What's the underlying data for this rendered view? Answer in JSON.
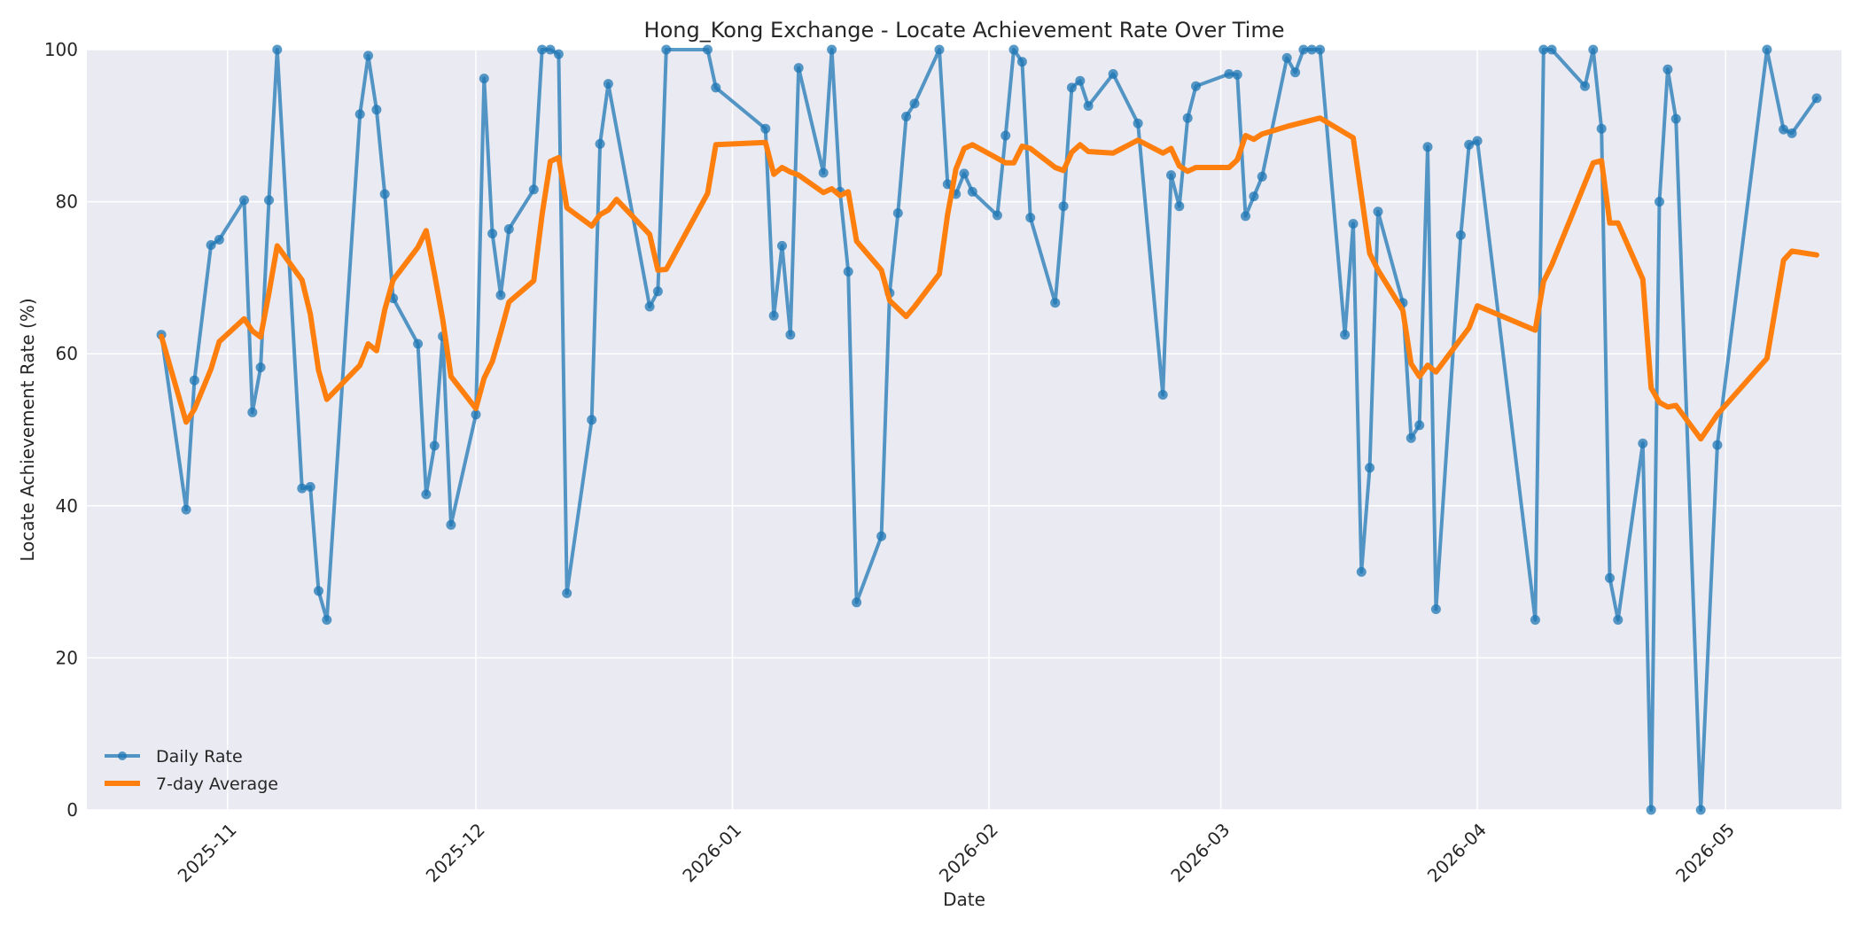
{
  "chart_data": {
    "type": "line",
    "title": "Hong_Kong Exchange - Locate Achievement Rate Over Time",
    "xlabel": "Date",
    "ylabel": "Locate Achievement Rate (%)",
    "xlim": [
      "2025-10-15",
      "2026-05-15"
    ],
    "ylim": [
      0,
      100
    ],
    "yticks": [
      0,
      20,
      40,
      60,
      80,
      100
    ],
    "xticks": [
      {
        "date": "2025-11-01",
        "label": "2025-11"
      },
      {
        "date": "2025-12-01",
        "label": "2025-12"
      },
      {
        "date": "2026-01-01",
        "label": "2026-01"
      },
      {
        "date": "2026-02-01",
        "label": "2026-02"
      },
      {
        "date": "2026-03-01",
        "label": "2026-03"
      },
      {
        "date": "2026-04-01",
        "label": "2026-04"
      },
      {
        "date": "2026-05-01",
        "label": "2026-05"
      }
    ],
    "grid": true,
    "legend_position": "lower-left",
    "series": [
      {
        "name": "Daily Rate",
        "color": "#1f77b4",
        "markers": true,
        "points": [
          [
            "2025-10-24",
            62.5
          ],
          [
            "2025-10-27",
            39.5
          ],
          [
            "2025-10-28",
            56.5
          ],
          [
            "2025-10-30",
            74.3
          ],
          [
            "2025-10-31",
            75
          ],
          [
            "2025-11-03",
            80.2
          ],
          [
            "2025-11-04",
            52.3
          ],
          [
            "2025-11-05",
            58.2
          ],
          [
            "2025-11-06",
            80.2
          ],
          [
            "2025-11-07",
            100
          ],
          [
            "2025-11-10",
            42.3
          ],
          [
            "2025-11-11",
            42.5
          ],
          [
            "2025-11-12",
            28.8
          ],
          [
            "2025-11-13",
            25
          ],
          [
            "2025-11-17",
            91.5
          ],
          [
            "2025-11-18",
            99.2
          ],
          [
            "2025-11-19",
            92.1
          ],
          [
            "2025-11-20",
            81
          ],
          [
            "2025-11-21",
            67.3
          ],
          [
            "2025-11-24",
            61.3
          ],
          [
            "2025-11-25",
            41.5
          ],
          [
            "2025-11-26",
            47.9
          ],
          [
            "2025-11-27",
            62.3
          ],
          [
            "2025-11-28",
            37.5
          ],
          [
            "2025-12-01",
            52
          ],
          [
            "2025-12-02",
            96.2
          ],
          [
            "2025-12-03",
            75.8
          ],
          [
            "2025-12-04",
            67.7
          ],
          [
            "2025-12-05",
            76.4
          ],
          [
            "2025-12-08",
            81.6
          ],
          [
            "2025-12-09",
            100
          ],
          [
            "2025-12-10",
            100
          ],
          [
            "2025-12-11",
            99.4
          ],
          [
            "2025-12-12",
            28.5
          ],
          [
            "2025-12-15",
            51.3
          ],
          [
            "2025-12-16",
            87.6
          ],
          [
            "2025-12-17",
            95.5
          ],
          [
            "2025-12-22",
            66.2
          ],
          [
            "2025-12-23",
            68.2
          ],
          [
            "2025-12-24",
            100
          ],
          [
            "2025-12-29",
            100
          ],
          [
            "2025-12-30",
            95
          ],
          [
            "2026-01-05",
            89.6
          ],
          [
            "2026-01-06",
            65
          ],
          [
            "2026-01-07",
            74.2
          ],
          [
            "2026-01-08",
            62.5
          ],
          [
            "2026-01-09",
            97.6
          ],
          [
            "2026-01-12",
            83.8
          ],
          [
            "2026-01-13",
            100
          ],
          [
            "2026-01-14",
            81.3
          ],
          [
            "2026-01-15",
            70.8
          ],
          [
            "2026-01-16",
            27.3
          ],
          [
            "2026-01-19",
            36
          ],
          [
            "2026-01-20",
            68
          ],
          [
            "2026-01-21",
            78.5
          ],
          [
            "2026-01-22",
            91.2
          ],
          [
            "2026-01-23",
            92.9
          ],
          [
            "2026-01-26",
            100
          ],
          [
            "2026-01-27",
            82.3
          ],
          [
            "2026-01-28",
            81
          ],
          [
            "2026-01-29",
            83.7
          ],
          [
            "2026-01-30",
            81.3
          ],
          [
            "2026-02-02",
            78.2
          ],
          [
            "2026-02-03",
            88.7
          ],
          [
            "2026-02-04",
            100
          ],
          [
            "2026-02-05",
            98.4
          ],
          [
            "2026-02-06",
            77.9
          ],
          [
            "2026-02-09",
            66.7
          ],
          [
            "2026-02-10",
            79.4
          ],
          [
            "2026-02-11",
            95
          ],
          [
            "2026-02-12",
            95.9
          ],
          [
            "2026-02-13",
            92.6
          ],
          [
            "2026-02-16",
            96.8
          ],
          [
            "2026-02-19",
            90.3
          ],
          [
            "2026-02-22",
            54.6
          ],
          [
            "2026-02-23",
            83.5
          ],
          [
            "2026-02-24",
            79.4
          ],
          [
            "2026-02-25",
            91
          ],
          [
            "2026-02-26",
            95.2
          ],
          [
            "2026-03-02",
            96.8
          ],
          [
            "2026-03-03",
            96.7
          ],
          [
            "2026-03-04",
            78.1
          ],
          [
            "2026-03-05",
            80.7
          ],
          [
            "2026-03-06",
            83.3
          ],
          [
            "2026-03-09",
            98.9
          ],
          [
            "2026-03-10",
            97
          ],
          [
            "2026-03-11",
            100
          ],
          [
            "2026-03-12",
            100
          ],
          [
            "2026-03-13",
            100
          ],
          [
            "2026-03-16",
            62.5
          ],
          [
            "2026-03-17",
            77.1
          ],
          [
            "2026-03-18",
            31.3
          ],
          [
            "2026-03-19",
            45
          ],
          [
            "2026-03-20",
            78.7
          ],
          [
            "2026-03-23",
            66.7
          ],
          [
            "2026-03-24",
            48.9
          ],
          [
            "2026-03-25",
            50.6
          ],
          [
            "2026-03-26",
            87.2
          ],
          [
            "2026-03-27",
            26.4
          ],
          [
            "2026-03-30",
            75.6
          ],
          [
            "2026-03-31",
            87.5
          ],
          [
            "2026-04-01",
            88
          ],
          [
            "2026-04-08",
            25
          ],
          [
            "2026-04-09",
            100
          ],
          [
            "2026-04-10",
            100
          ],
          [
            "2026-04-14",
            95.2
          ],
          [
            "2026-04-15",
            100
          ],
          [
            "2026-04-16",
            89.6
          ],
          [
            "2026-04-17",
            30.5
          ],
          [
            "2026-04-18",
            25
          ],
          [
            "2026-04-21",
            48.2
          ],
          [
            "2026-04-22",
            0
          ],
          [
            "2026-04-23",
            80
          ],
          [
            "2026-04-24",
            97.4
          ],
          [
            "2026-04-25",
            90.9
          ],
          [
            "2026-04-28",
            0
          ],
          [
            "2026-04-30",
            48
          ],
          [
            "2026-05-06",
            100
          ],
          [
            "2026-05-08",
            89.5
          ],
          [
            "2026-05-09",
            89
          ],
          [
            "2026-05-12",
            93.6
          ]
        ]
      },
      {
        "name": "7-day Average",
        "color": "#ff7f0e",
        "markers": false,
        "points": [
          [
            "2025-10-24",
            62.3
          ],
          [
            "2025-10-27",
            51
          ],
          [
            "2025-10-28",
            52.7
          ],
          [
            "2025-10-30",
            58
          ],
          [
            "2025-10-31",
            61.6
          ],
          [
            "2025-11-03",
            64.6
          ],
          [
            "2025-11-04",
            63
          ],
          [
            "2025-11-05",
            62.2
          ],
          [
            "2025-11-06",
            68
          ],
          [
            "2025-11-07",
            74.2
          ],
          [
            "2025-11-10",
            69.7
          ],
          [
            "2025-11-11",
            65.2
          ],
          [
            "2025-11-12",
            57.8
          ],
          [
            "2025-11-13",
            54
          ],
          [
            "2025-11-17",
            58.5
          ],
          [
            "2025-11-18",
            61.3
          ],
          [
            "2025-11-19",
            60.4
          ],
          [
            "2025-11-20",
            65.8
          ],
          [
            "2025-11-21",
            69.7
          ],
          [
            "2025-11-24",
            74
          ],
          [
            "2025-11-25",
            76.2
          ],
          [
            "2025-11-26",
            70.5
          ],
          [
            "2025-11-27",
            64.5
          ],
          [
            "2025-11-28",
            57
          ],
          [
            "2025-12-01",
            52.8
          ],
          [
            "2025-12-02",
            56.8
          ],
          [
            "2025-12-03",
            59
          ],
          [
            "2025-12-04",
            62.8
          ],
          [
            "2025-12-05",
            66.8
          ],
          [
            "2025-12-08",
            69.6
          ],
          [
            "2025-12-09",
            78.3
          ],
          [
            "2025-12-10",
            85.3
          ],
          [
            "2025-12-11",
            85.8
          ],
          [
            "2025-12-12",
            79.2
          ],
          [
            "2025-12-15",
            76.8
          ],
          [
            "2025-12-16",
            78.3
          ],
          [
            "2025-12-17",
            78.9
          ],
          [
            "2025-12-18",
            80.3
          ],
          [
            "2025-12-22",
            75.7
          ],
          [
            "2025-12-23",
            71
          ],
          [
            "2025-12-24",
            71.1
          ],
          [
            "2025-12-29",
            81.1
          ],
          [
            "2025-12-30",
            87.5
          ],
          [
            "2026-01-05",
            87.8
          ],
          [
            "2026-01-06",
            83.6
          ],
          [
            "2026-01-07",
            84.5
          ],
          [
            "2026-01-08",
            83.9
          ],
          [
            "2026-01-09",
            83.5
          ],
          [
            "2026-01-12",
            81.2
          ],
          [
            "2026-01-13",
            81.7
          ],
          [
            "2026-01-14",
            80.8
          ],
          [
            "2026-01-15",
            81.3
          ],
          [
            "2026-01-16",
            74.8
          ],
          [
            "2026-01-19",
            71
          ],
          [
            "2026-01-20",
            67
          ],
          [
            "2026-01-22",
            64.9
          ],
          [
            "2026-01-23",
            66.2
          ],
          [
            "2026-01-26",
            70.5
          ],
          [
            "2026-01-27",
            78.3
          ],
          [
            "2026-01-28",
            84.3
          ],
          [
            "2026-01-29",
            87
          ],
          [
            "2026-01-30",
            87.5
          ],
          [
            "2026-02-03",
            85.1
          ],
          [
            "2026-02-04",
            85.1
          ],
          [
            "2026-02-05",
            87.3
          ],
          [
            "2026-02-06",
            87
          ],
          [
            "2026-02-09",
            84.5
          ],
          [
            "2026-02-10",
            84.1
          ],
          [
            "2026-02-11",
            86.5
          ],
          [
            "2026-02-12",
            87.5
          ],
          [
            "2026-02-13",
            86.6
          ],
          [
            "2026-02-16",
            86.4
          ],
          [
            "2026-02-19",
            88.1
          ],
          [
            "2026-02-22",
            86.4
          ],
          [
            "2026-02-23",
            87
          ],
          [
            "2026-02-24",
            84.7
          ],
          [
            "2026-02-25",
            84
          ],
          [
            "2026-02-26",
            84.5
          ],
          [
            "2026-03-02",
            84.5
          ],
          [
            "2026-03-03",
            85.5
          ],
          [
            "2026-03-04",
            88.7
          ],
          [
            "2026-03-05",
            88.2
          ],
          [
            "2026-03-06",
            88.9
          ],
          [
            "2026-03-09",
            89.9
          ],
          [
            "2026-03-13",
            91
          ],
          [
            "2026-03-17",
            88.4
          ],
          [
            "2026-03-19",
            73.2
          ],
          [
            "2026-03-20",
            71
          ],
          [
            "2026-03-23",
            65.7
          ],
          [
            "2026-03-24",
            58.7
          ],
          [
            "2026-03-25",
            57
          ],
          [
            "2026-03-26",
            58.5
          ],
          [
            "2026-03-27",
            57.6
          ],
          [
            "2026-03-31",
            63.4
          ],
          [
            "2026-04-01",
            66.3
          ],
          [
            "2026-04-08",
            63.1
          ],
          [
            "2026-04-09",
            69.5
          ],
          [
            "2026-04-10",
            71.7
          ],
          [
            "2026-04-15",
            85.1
          ],
          [
            "2026-04-16",
            85.4
          ],
          [
            "2026-04-17",
            77.2
          ],
          [
            "2026-04-18",
            77.2
          ],
          [
            "2026-04-21",
            69.8
          ],
          [
            "2026-04-22",
            55.5
          ],
          [
            "2026-04-23",
            53.6
          ],
          [
            "2026-04-24",
            53
          ],
          [
            "2026-04-25",
            53.2
          ],
          [
            "2026-04-28",
            48.8
          ],
          [
            "2026-04-30",
            52
          ],
          [
            "2026-05-06",
            59.4
          ],
          [
            "2026-05-08",
            72.3
          ],
          [
            "2026-05-09",
            73.5
          ],
          [
            "2026-05-12",
            73
          ]
        ]
      }
    ]
  }
}
